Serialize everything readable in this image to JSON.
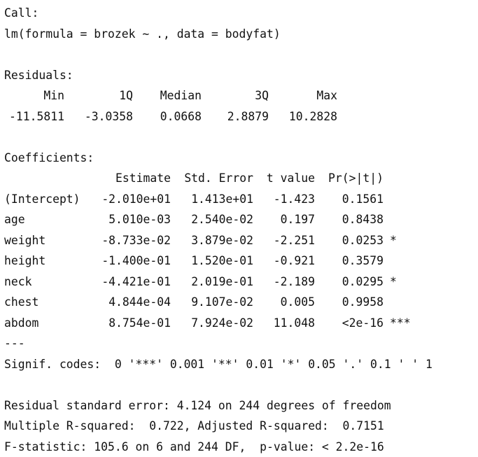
{
  "call": {
    "label": "Call:",
    "formula": "lm(formula = brozek ~ ., data = bodyfat)"
  },
  "residuals": {
    "label": "Residuals:",
    "headers": [
      "Min",
      "1Q",
      "Median",
      "3Q",
      "Max"
    ],
    "values": [
      "-11.5811",
      "-3.0358",
      "0.0668",
      "2.8879",
      "10.2828"
    ]
  },
  "coefficients": {
    "label": "Coefficients:",
    "headers": [
      "",
      "Estimate",
      "Std. Error",
      "t value",
      "Pr(>|t|)",
      ""
    ],
    "rows": [
      {
        "name": "(Intercept)",
        "estimate": "-2.010e+01",
        "std_error": "1.413e+01",
        "t_value": "-1.423",
        "p_value": "0.1561",
        "signif": ""
      },
      {
        "name": "age",
        "estimate": "5.010e-03",
        "std_error": "2.540e-02",
        "t_value": "0.197",
        "p_value": "0.8438",
        "signif": ""
      },
      {
        "name": "weight",
        "estimate": "-8.733e-02",
        "std_error": "3.879e-02",
        "t_value": "-2.251",
        "p_value": "0.0253",
        "signif": "*"
      },
      {
        "name": "height",
        "estimate": "-1.400e-01",
        "std_error": "1.520e-01",
        "t_value": "-0.921",
        "p_value": "0.3579",
        "signif": ""
      },
      {
        "name": "neck",
        "estimate": "-4.421e-01",
        "std_error": "2.019e-01",
        "t_value": "-2.189",
        "p_value": "0.0295",
        "signif": "*"
      },
      {
        "name": "chest",
        "estimate": "4.844e-04",
        "std_error": "9.107e-02",
        "t_value": "0.005",
        "p_value": "0.9958",
        "signif": ""
      },
      {
        "name": "abdom",
        "estimate": "8.754e-01",
        "std_error": "7.924e-02",
        "t_value": "11.048",
        "p_value": "<2e-16",
        "signif": "***"
      }
    ]
  },
  "separator": "---",
  "signif_codes": "Signif. codes:  0 '***' 0.001 '**' 0.01 '*' 0.05 '.' 0.1 ' ' 1",
  "summary": {
    "residual_se": "Residual standard error: 4.124 on 244 degrees of freedom",
    "r_squared": "Multiple R-squared:  0.722, Adjusted R-squared:  0.7151",
    "f_statistic": "F-statistic: 105.6 on 6 and 244 DF,  p-value: < 2.2e-16"
  }
}
